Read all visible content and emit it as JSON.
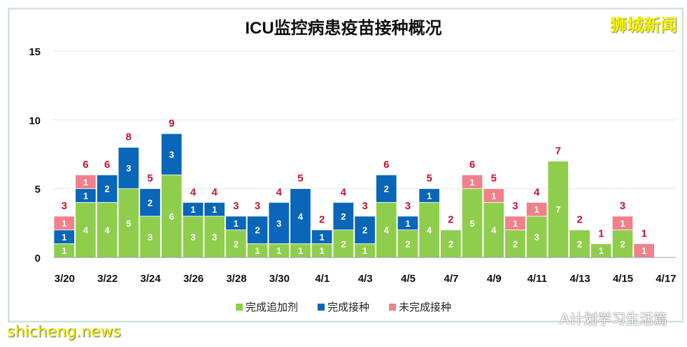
{
  "brand": {
    "logo_text": "狮城新闻",
    "source_text": "A计划学习生活篇",
    "watermark": "shicheng.news"
  },
  "colors": {
    "booster": "#8fce4c",
    "completed": "#0a66b8",
    "unvaccinated": "#f0808a",
    "total_label": "#c8102e"
  },
  "chart_data": {
    "type": "bar",
    "stacked": true,
    "title": "ICU监控病患疫苗接种概况",
    "ylim": [
      0,
      15
    ],
    "yticks": [
      0,
      5,
      10,
      15
    ],
    "grid": true,
    "legend_position": "bottom",
    "categories": [
      "3/20",
      "3/21",
      "3/22",
      "3/23",
      "3/24",
      "3/25",
      "3/26",
      "3/27",
      "3/28",
      "3/29",
      "3/30",
      "3/31",
      "4/1",
      "4/2",
      "4/3",
      "4/4",
      "4/5",
      "4/6",
      "4/7",
      "4/8",
      "4/9",
      "4/10",
      "4/11",
      "4/12",
      "4/13",
      "4/14",
      "4/15",
      "4/16"
    ],
    "xtick_labels": [
      "3/20",
      "3/22",
      "3/24",
      "3/26",
      "3/28",
      "3/30",
      "4/1",
      "4/3",
      "4/5",
      "4/7",
      "4/9",
      "4/11",
      "4/13",
      "4/15",
      "4/17"
    ],
    "series": [
      {
        "name": "完成追加剂",
        "values": [
          1,
          4,
          4,
          5,
          3,
          6,
          3,
          3,
          2,
          1,
          1,
          1,
          1,
          2,
          1,
          4,
          2,
          4,
          2,
          5,
          4,
          2,
          3,
          7,
          2,
          1,
          2,
          0
        ]
      },
      {
        "name": "完成接种",
        "values": [
          1,
          1,
          2,
          3,
          2,
          3,
          1,
          1,
          1,
          2,
          3,
          4,
          1,
          2,
          2,
          2,
          1,
          1,
          0,
          0,
          0,
          0,
          0,
          0,
          0,
          0,
          0,
          0
        ]
      },
      {
        "name": "未完成接种",
        "values": [
          1,
          1,
          0,
          0,
          0,
          0,
          0,
          0,
          0,
          0,
          0,
          0,
          0,
          0,
          0,
          0,
          0,
          0,
          0,
          1,
          1,
          1,
          1,
          0,
          0,
          0,
          1,
          1
        ]
      }
    ],
    "totals": [
      3,
      6,
      6,
      8,
      5,
      9,
      4,
      4,
      3,
      3,
      4,
      5,
      2,
      4,
      3,
      6,
      3,
      5,
      2,
      6,
      5,
      3,
      4,
      7,
      2,
      1,
      3,
      1
    ]
  }
}
